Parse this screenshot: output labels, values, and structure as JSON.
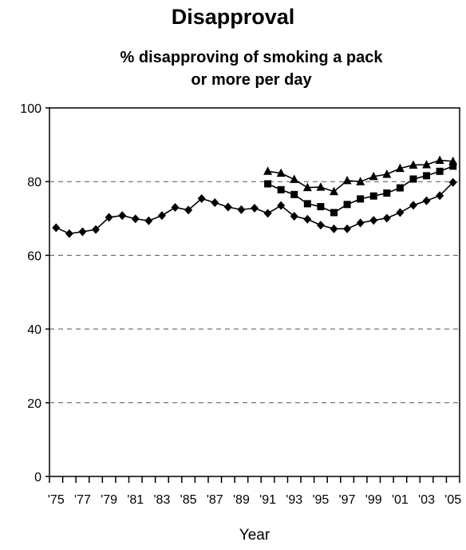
{
  "chart_data": {
    "type": "line",
    "title": "Disapproval",
    "subtitle_lines": [
      "% disapproving of smoking a pack",
      "or more per day"
    ],
    "xlabel": "Year",
    "ylabel": "",
    "ylim": [
      0,
      100
    ],
    "yticks": [
      "0",
      "20",
      "40",
      "60",
      "80",
      "100"
    ],
    "x": [
      1975,
      1976,
      1977,
      1978,
      1979,
      1980,
      1981,
      1982,
      1983,
      1984,
      1985,
      1986,
      1987,
      1988,
      1989,
      1990,
      1991,
      1992,
      1993,
      1994,
      1995,
      1996,
      1997,
      1998,
      1999,
      2000,
      2001,
      2002,
      2003,
      2004,
      2005
    ],
    "xtick_labels": [
      "'75",
      "'77",
      "'79",
      "'81",
      "'83",
      "'85",
      "'87",
      "'89",
      "'91",
      "'93",
      "'95",
      "'97",
      "'99",
      "'01",
      "'03",
      "'05"
    ],
    "xtick_label_years": [
      1975,
      1977,
      1979,
      1981,
      1983,
      1985,
      1987,
      1989,
      1991,
      1993,
      1995,
      1997,
      1999,
      2001,
      2003,
      2005
    ],
    "grid": "horizontal dashed",
    "legend": "none",
    "series": [
      {
        "marker": "triangle",
        "color": "#000000",
        "x": [
          1991,
          1992,
          1993,
          1994,
          1995,
          1996,
          1997,
          1998,
          1999,
          2000,
          2001,
          2002,
          2003,
          2004,
          2005
        ],
        "values": [
          82.8,
          82.3,
          80.6,
          78.4,
          78.5,
          77.3,
          80.3,
          80.0,
          81.4,
          82.0,
          83.6,
          84.5,
          84.6,
          85.8,
          85.5
        ]
      },
      {
        "marker": "square",
        "color": "#000000",
        "x": [
          1991,
          1992,
          1993,
          1994,
          1995,
          1996,
          1997,
          1998,
          1999,
          2000,
          2001,
          2002,
          2003,
          2004,
          2005
        ],
        "values": [
          79.4,
          77.8,
          76.5,
          74.0,
          73.2,
          71.6,
          73.8,
          75.3,
          76.1,
          76.9,
          78.3,
          80.7,
          81.6,
          82.8,
          84.2
        ]
      },
      {
        "marker": "diamond",
        "color": "#000000",
        "x": [
          1975,
          1976,
          1977,
          1978,
          1979,
          1980,
          1981,
          1982,
          1983,
          1984,
          1985,
          1986,
          1987,
          1988,
          1989,
          1990,
          1991,
          1992,
          1993,
          1994,
          1995,
          1996,
          1997,
          1998,
          1999,
          2000,
          2001,
          2002,
          2003,
          2004,
          2005
        ],
        "values": [
          67.5,
          65.9,
          66.4,
          67.0,
          70.3,
          70.8,
          69.9,
          69.4,
          70.8,
          73.0,
          72.3,
          75.4,
          74.3,
          73.1,
          72.4,
          72.8,
          71.4,
          73.5,
          70.6,
          69.8,
          68.2,
          67.2,
          67.2,
          68.8,
          69.5,
          70.1,
          71.6,
          73.6,
          74.8,
          76.2,
          79.8
        ]
      }
    ]
  }
}
